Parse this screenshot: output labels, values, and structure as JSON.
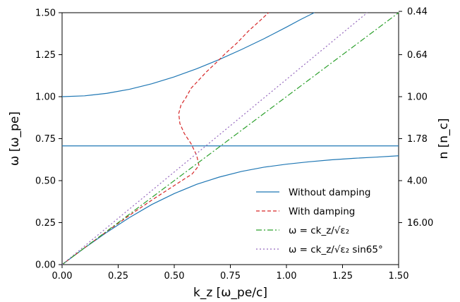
{
  "chart_data": {
    "type": "line",
    "xlabel": "k_z [ω_pe/c]",
    "ylabel": "ω [ω_pe]",
    "ylabel_right": "n [n_c]",
    "xlim": [
      0,
      1.5
    ],
    "ylim": [
      0,
      1.5
    ],
    "x_ticks": [
      0.0,
      0.25,
      0.5,
      0.75,
      1.0,
      1.25,
      1.5
    ],
    "x_tick_labels": [
      "0.00",
      "0.25",
      "0.50",
      "0.75",
      "1.00",
      "1.25",
      "1.50"
    ],
    "y_ticks": [
      0.0,
      0.25,
      0.5,
      0.75,
      1.0,
      1.25,
      1.5
    ],
    "y_tick_labels": [
      "0.00",
      "0.25",
      "0.50",
      "0.75",
      "1.00",
      "1.25",
      "1.50"
    ],
    "right_ticks": [
      {
        "omega": 1.508,
        "label": "0.44"
      },
      {
        "omega": 1.25,
        "label": "0.64"
      },
      {
        "omega": 1.0,
        "label": "1.00"
      },
      {
        "omega": 0.75,
        "label": "1.78"
      },
      {
        "omega": 0.5,
        "label": "4.00"
      },
      {
        "omega": 0.25,
        "label": "16.00"
      }
    ],
    "grid": false,
    "legend_position": "lower-right",
    "legend": [
      {
        "label": "Without damping",
        "color": "#1f77b4",
        "style": "solid"
      },
      {
        "label": "With damping",
        "color": "#d62728",
        "style": "dashed"
      },
      {
        "label": "ω = ck_z/√ε₂",
        "color": "#2ca02c",
        "style": "dashdot"
      },
      {
        "label": "ω = ck_z/√ε₂ sin65°",
        "color": "#9467bd",
        "style": "dotted"
      }
    ],
    "series": [
      {
        "name": "Without damping",
        "color": "#1f77b4",
        "style": "solid",
        "points": [
          [
            0.0,
            1.0
          ],
          [
            0.1,
            1.005
          ],
          [
            0.2,
            1.02
          ],
          [
            0.3,
            1.044
          ],
          [
            0.4,
            1.077
          ],
          [
            0.5,
            1.118
          ],
          [
            0.6,
            1.166
          ],
          [
            0.7,
            1.221
          ],
          [
            0.8,
            1.281
          ],
          [
            0.9,
            1.345
          ],
          [
            1.0,
            1.414
          ],
          [
            1.064,
            1.46
          ],
          [
            1.124,
            1.5
          ]
        ]
      },
      {
        "name": "Without damping",
        "color": "#1f77b4",
        "style": "solid",
        "points": [
          [
            0.0,
            0.707
          ],
          [
            1.5,
            0.707
          ]
        ]
      },
      {
        "name": "Without damping",
        "color": "#1f77b4",
        "style": "solid",
        "points": [
          [
            0.0,
            0.0
          ],
          [
            0.1,
            0.099
          ],
          [
            0.2,
            0.193
          ],
          [
            0.3,
            0.28
          ],
          [
            0.4,
            0.358
          ],
          [
            0.5,
            0.423
          ],
          [
            0.6,
            0.478
          ],
          [
            0.7,
            0.521
          ],
          [
            0.8,
            0.555
          ],
          [
            0.9,
            0.58
          ],
          [
            1.0,
            0.598
          ],
          [
            1.1,
            0.612
          ],
          [
            1.2,
            0.624
          ],
          [
            1.3,
            0.633
          ],
          [
            1.4,
            0.64
          ],
          [
            1.5,
            0.648
          ]
        ]
      },
      {
        "name": "With damping",
        "color": "#d62728",
        "style": "dashed",
        "points": [
          [
            0.0,
            0.0
          ],
          [
            0.1,
            0.1
          ],
          [
            0.2,
            0.198
          ],
          [
            0.3,
            0.293
          ],
          [
            0.4,
            0.384
          ],
          [
            0.5,
            0.471
          ],
          [
            0.58,
            0.54
          ],
          [
            0.61,
            0.59
          ],
          [
            0.6,
            0.65
          ],
          [
            0.575,
            0.72
          ],
          [
            0.545,
            0.78
          ],
          [
            0.525,
            0.84
          ],
          [
            0.52,
            0.9
          ],
          [
            0.53,
            0.95
          ],
          [
            0.55,
            0.99
          ],
          [
            0.575,
            1.05
          ],
          [
            0.61,
            1.1
          ],
          [
            0.645,
            1.15
          ],
          [
            0.685,
            1.2
          ],
          [
            0.73,
            1.26
          ],
          [
            0.78,
            1.32
          ],
          [
            0.83,
            1.39
          ],
          [
            0.88,
            1.45
          ],
          [
            0.92,
            1.5
          ]
        ]
      },
      {
        "name": "ω = ck_z/√ε₂",
        "color": "#2ca02c",
        "style": "dashdot",
        "points": [
          [
            0.0,
            0.0
          ],
          [
            1.5,
            1.5
          ]
        ]
      },
      {
        "name": "ω = ck_z/√ε₂ sin65°",
        "color": "#9467bd",
        "style": "dotted",
        "points": [
          [
            0.0,
            0.0
          ],
          [
            1.36,
            1.5
          ]
        ]
      }
    ]
  }
}
